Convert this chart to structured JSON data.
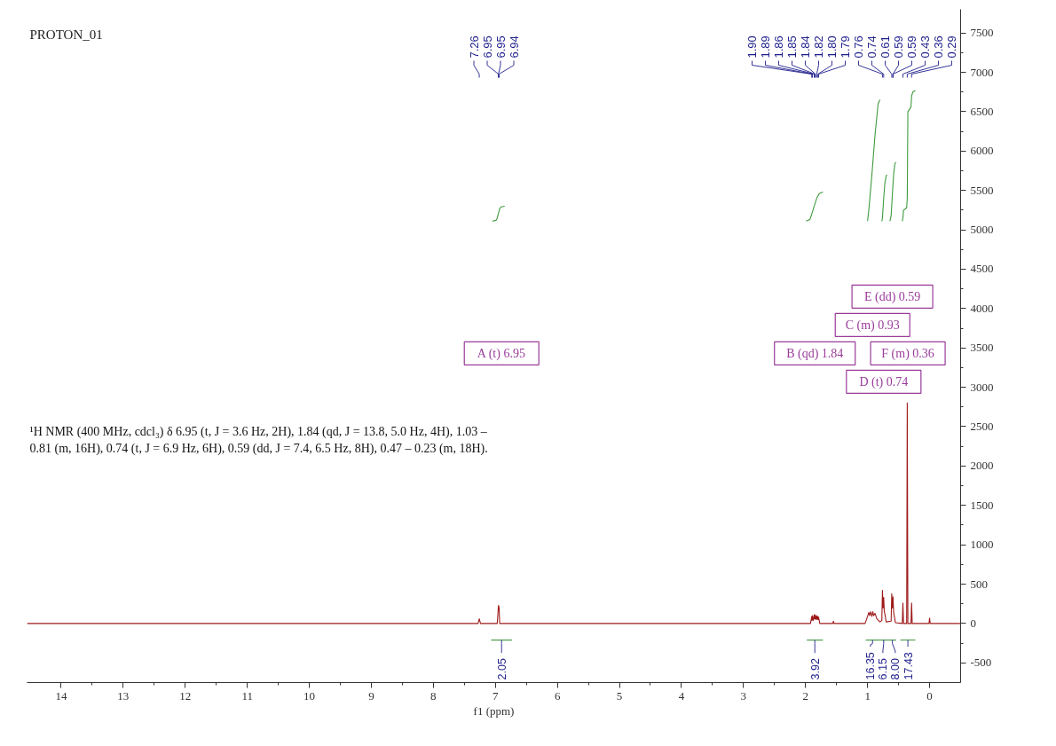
{
  "chart_data": {
    "type": "line",
    "title": "PROTON_01",
    "xlabel": "f1 (ppm)",
    "xlim": [
      14.55,
      -0.5
    ],
    "xticks": [
      14,
      13,
      12,
      11,
      10,
      9,
      8,
      7,
      6,
      5,
      4,
      3,
      2,
      1,
      0
    ],
    "ylim": [
      -750,
      7800
    ],
    "yticks": [
      -500,
      0,
      500,
      1000,
      1500,
      2000,
      2500,
      3000,
      3500,
      4000,
      4500,
      5000,
      5500,
      6000,
      6500,
      7000,
      7500
    ],
    "series": [
      {
        "color": "#9e1a1a",
        "x": [
          14.55,
          7.28,
          7.26,
          7.24,
          6.97,
          6.95,
          6.94,
          6.93,
          1.92,
          1.9,
          1.895,
          1.89,
          1.875,
          1.86,
          1.855,
          1.85,
          1.845,
          1.84,
          1.83,
          1.82,
          1.81,
          1.8,
          1.795,
          1.79,
          1.77,
          1.56,
          1.55,
          1.54,
          1.04,
          1.0,
          0.98,
          0.965,
          0.95,
          0.93,
          0.915,
          0.9,
          0.88,
          0.85,
          0.8,
          0.77,
          0.76,
          0.75,
          0.74,
          0.73,
          0.72,
          0.7,
          0.62,
          0.61,
          0.6,
          0.59,
          0.58,
          0.57,
          0.55,
          0.44,
          0.43,
          0.42,
          0.37,
          0.36,
          0.35,
          0.3,
          0.29,
          0.28,
          0.01,
          0.0,
          -0.01,
          -0.5
        ],
        "values": [
          0,
          0,
          60,
          0,
          0,
          230,
          200,
          0,
          0,
          90,
          40,
          100,
          40,
          110,
          60,
          110,
          60,
          100,
          50,
          100,
          50,
          90,
          50,
          80,
          0,
          0,
          30,
          0,
          0,
          90,
          140,
          100,
          150,
          90,
          150,
          100,
          130,
          60,
          20,
          40,
          420,
          200,
          330,
          150,
          120,
          20,
          30,
          380,
          200,
          340,
          150,
          100,
          10,
          0,
          260,
          0,
          0,
          2800,
          0,
          0,
          260,
          0,
          0,
          70,
          0,
          0
        ]
      },
      {
        "color": "#3e9a3e",
        "x": [
          7.05,
          6.99,
          6.97,
          6.95,
          6.93,
          6.91,
          6.85
        ],
        "values": [
          5110,
          5120,
          5150,
          5210,
          5270,
          5290,
          5300
        ]
      },
      {
        "color": "#3e9a3e",
        "x": [
          1.99,
          1.93,
          1.9,
          1.86,
          1.82,
          1.78,
          1.72
        ],
        "values": [
          5110,
          5130,
          5200,
          5300,
          5400,
          5460,
          5480
        ]
      },
      {
        "color": "#3e9a3e",
        "x": [
          1.0,
          0.98,
          0.93,
          0.88,
          0.83,
          0.8
        ],
        "values": [
          5110,
          5250,
          5700,
          6200,
          6600,
          6650
        ]
      },
      {
        "color": "#3e9a3e",
        "x": [
          0.77,
          0.76,
          0.74,
          0.72,
          0.7,
          0.69
        ],
        "values": [
          5110,
          5150,
          5400,
          5600,
          5680,
          5700
        ]
      },
      {
        "color": "#3e9a3e",
        "x": [
          0.64,
          0.62,
          0.6,
          0.58,
          0.56,
          0.54
        ],
        "values": [
          5110,
          5180,
          5450,
          5700,
          5840,
          5860
        ]
      },
      {
        "color": "#3e9a3e",
        "x": [
          0.44,
          0.43,
          0.42,
          0.4,
          0.37,
          0.36,
          0.35,
          0.3,
          0.29,
          0.27,
          0.23
        ],
        "values": [
          5110,
          5150,
          5250,
          5260,
          5280,
          5400,
          6500,
          6560,
          6700,
          6750,
          6770
        ]
      },
      {
        "color": "#3e9a3e",
        "x": [
          7.07,
          6.73
        ],
        "values": [
          -210,
          -210
        ]
      },
      {
        "color": "#3e9a3e",
        "x": [
          1.98,
          1.72
        ],
        "values": [
          -210,
          -210
        ]
      },
      {
        "color": "#3e9a3e",
        "x": [
          1.03,
          0.81
        ],
        "values": [
          -210,
          -210
        ]
      },
      {
        "color": "#3e9a3e",
        "x": [
          0.81,
          0.67
        ],
        "values": [
          -210,
          -210
        ]
      },
      {
        "color": "#3e9a3e",
        "x": [
          0.67,
          0.54
        ],
        "values": [
          -210,
          -210
        ]
      },
      {
        "color": "#3e9a3e",
        "x": [
          0.47,
          0.23
        ],
        "values": [
          -210,
          -210
        ]
      }
    ],
    "annotations": [
      "¹H NMR (400 MHz, cdcl₃) δ 6.95 (t, J = 3.6 Hz, 2H), 1.84 (qd, J = 13.8, 5.0 Hz, 4H), 1.03 – 0.81 (m, 16H), 0.74 (t, J = 6.9 Hz, 6H), 0.59 (dd, J = 7.4, 6.5 Hz, 8H), 0.47 – 0.23 (m, 18H).",
      "A (t) 6.95",
      "B (qd) 1.84",
      "C (m) 0.93",
      "D (t) 0.74",
      "E (dd) 0.59",
      "F (m) 0.36",
      {
        "text": "7.26",
        "x": 7.26
      },
      {
        "text": "6.95",
        "x": 6.95
      },
      {
        "text": "6.95",
        "x": 6.95
      },
      {
        "text": "6.94",
        "x": 6.94
      },
      {
        "text": "1.90",
        "x": 1.9
      },
      {
        "text": "1.89",
        "x": 1.89
      },
      {
        "text": "1.86",
        "x": 1.86
      },
      {
        "text": "1.85",
        "x": 1.85
      },
      {
        "text": "1.84",
        "x": 1.84
      },
      {
        "text": "1.82",
        "x": 1.82
      },
      {
        "text": "1.80",
        "x": 1.8
      },
      {
        "text": "1.79",
        "x": 1.79
      },
      {
        "text": "0.76",
        "x": 0.76
      },
      {
        "text": "0.74",
        "x": 0.74
      },
      {
        "text": "0.61",
        "x": 0.61
      },
      {
        "text": "0.59",
        "x": 0.59
      },
      {
        "text": "0.59",
        "x": 0.59
      },
      {
        "text": "0.43",
        "x": 0.43
      },
      {
        "text": "0.36",
        "x": 0.36
      },
      {
        "text": "0.29",
        "x": 0.29
      },
      {
        "text": "2.05",
        "x": 6.9,
        "y": -210
      },
      {
        "text": "3.92",
        "x": 1.85,
        "y": -210
      },
      {
        "text": "16.35",
        "x": 0.92,
        "y": -210
      },
      {
        "text": "6.15",
        "x": 0.74,
        "y": -210
      },
      {
        "text": "8.00",
        "x": 0.6,
        "y": -210
      },
      {
        "text": "17.43",
        "x": 0.35,
        "y": -210
      }
    ]
  }
}
